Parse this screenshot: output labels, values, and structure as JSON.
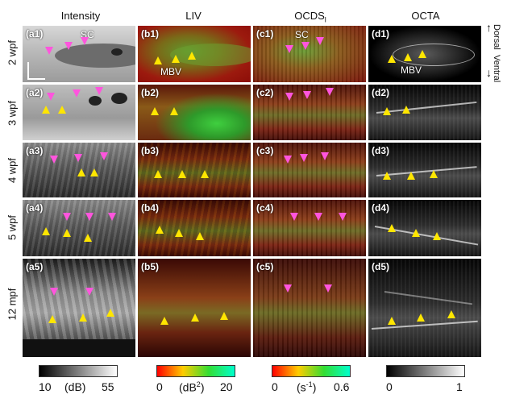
{
  "columns": [
    "Intensity",
    "LIV",
    "OCDS",
    "OCTA"
  ],
  "ocds_subscript": "l",
  "rows": [
    "2 wpf",
    "3 wpf",
    "4 wpf",
    "5 wpf",
    "12 mpf"
  ],
  "orientation": {
    "top": "Dorsal",
    "bottom": "Ventral"
  },
  "panels": [
    [
      "(a1)",
      "(b1)",
      "(c1)",
      "(d1)"
    ],
    [
      "(a2)",
      "(b2)",
      "(c2)",
      "(d2)"
    ],
    [
      "(a3)",
      "(b3)",
      "(c3)",
      "(d3)"
    ],
    [
      "(a4)",
      "(b4)",
      "(c4)",
      "(d4)"
    ],
    [
      "(a5)",
      "(b5)",
      "(c5)",
      "(d5)"
    ]
  ],
  "annotations": {
    "sc": "SC",
    "mbv": "MBV"
  },
  "colorbars": {
    "intensity": {
      "min": "10",
      "unit": "(dB)",
      "max": "55"
    },
    "liv": {
      "min": "0",
      "unit_pre": "(dB",
      "unit_sup": "2",
      "unit_post": ")",
      "max": "20"
    },
    "ocds": {
      "min": "0",
      "unit_pre": "(s",
      "unit_sup": "-1",
      "unit_post": ")",
      "max": "0.6"
    },
    "octa": {
      "min": "0",
      "max": "1"
    }
  },
  "colors": {
    "yellow_arrow": "#ffe600",
    "magenta_arrow": "#ff55dd"
  }
}
